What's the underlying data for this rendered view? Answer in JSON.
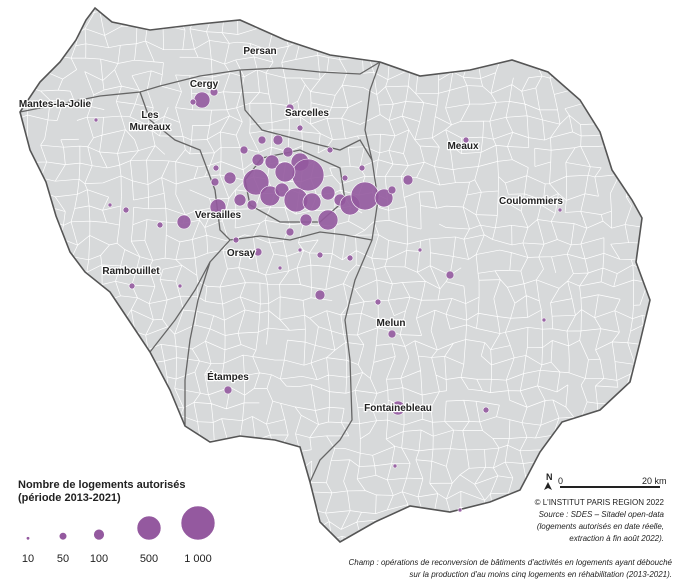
{
  "map": {
    "places": [
      {
        "lines": [
          "Persan"
        ]
      },
      {
        "lines": [
          "Cergy"
        ]
      },
      {
        "lines": [
          "Mantes-la-Jolie"
        ]
      },
      {
        "lines": [
          "Les",
          "Mureaux"
        ]
      },
      {
        "lines": [
          "Sarcelles"
        ]
      },
      {
        "lines": [
          "Meaux"
        ]
      },
      {
        "lines": [
          "Coulommiers"
        ]
      },
      {
        "lines": [
          "Versailles"
        ]
      },
      {
        "lines": [
          "Orsay"
        ]
      },
      {
        "lines": [
          "Rambouillet"
        ]
      },
      {
        "lines": [
          "Melun"
        ]
      },
      {
        "lines": [
          "Étampes"
        ]
      },
      {
        "lines": [
          "Fontainebleau"
        ]
      }
    ]
  },
  "legend": {
    "title": [
      "Nombre de logements autorisés",
      "(période 2013-2021)"
    ],
    "sizes": [
      10,
      50,
      100,
      500,
      {
        "value": 1000,
        "label": "1 000"
      }
    ]
  },
  "scale": {
    "north": "N",
    "start": "0",
    "end": "20 km"
  },
  "credits": [
    "© L'INSTITUT PARIS REGION 2022",
    "Source : SDES – Sitadel open-data",
    "(logements autorisés en date réelle,",
    "extraction à fin août 2022)."
  ],
  "note": [
    "Champ : opérations de reconversion de bâtiments d'activités en logements ayant débouché",
    "sur la production d'au moins cinq logements en réhabilitation (2013-2021)."
  ]
}
